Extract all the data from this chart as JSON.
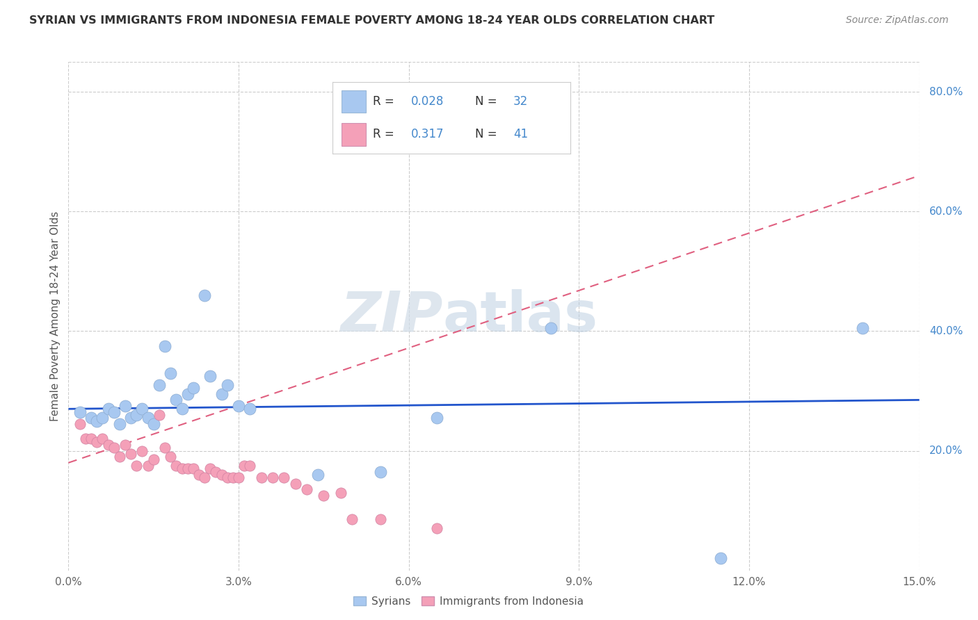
{
  "title": "SYRIAN VS IMMIGRANTS FROM INDONESIA FEMALE POVERTY AMONG 18-24 YEAR OLDS CORRELATION CHART",
  "source": "Source: ZipAtlas.com",
  "ylabel": "Female Poverty Among 18-24 Year Olds",
  "xlim": [
    0.0,
    0.15
  ],
  "ylim": [
    0.0,
    0.85
  ],
  "xticks": [
    0.0,
    0.03,
    0.06,
    0.09,
    0.12,
    0.15
  ],
  "xticklabels": [
    "0.0%",
    "3.0%",
    "6.0%",
    "9.0%",
    "12.0%",
    "15.0%"
  ],
  "yticks_right": [
    0.2,
    0.4,
    0.6,
    0.8
  ],
  "ytick_right_labels": [
    "20.0%",
    "40.0%",
    "60.0%",
    "80.0%"
  ],
  "syrians_color": "#a8c8f0",
  "indonesia_color": "#f4a0b8",
  "trendline_syrians_color": "#2255cc",
  "trendline_indonesia_color": "#e06080",
  "legend_R1": "0.028",
  "legend_N1": "32",
  "legend_R2": "0.317",
  "legend_N2": "41",
  "watermark_zip": "ZIP",
  "watermark_atlas": "atlas",
  "syrians_x": [
    0.002,
    0.004,
    0.005,
    0.006,
    0.007,
    0.008,
    0.009,
    0.01,
    0.011,
    0.012,
    0.013,
    0.014,
    0.015,
    0.016,
    0.017,
    0.018,
    0.019,
    0.02,
    0.021,
    0.022,
    0.024,
    0.025,
    0.027,
    0.028,
    0.03,
    0.032,
    0.044,
    0.055,
    0.065,
    0.085,
    0.115,
    0.14
  ],
  "syrians_y": [
    0.265,
    0.255,
    0.25,
    0.255,
    0.27,
    0.265,
    0.245,
    0.275,
    0.255,
    0.26,
    0.27,
    0.255,
    0.245,
    0.31,
    0.375,
    0.33,
    0.285,
    0.27,
    0.295,
    0.305,
    0.46,
    0.325,
    0.295,
    0.31,
    0.275,
    0.27,
    0.16,
    0.165,
    0.255,
    0.405,
    0.02,
    0.405
  ],
  "indonesia_x": [
    0.002,
    0.003,
    0.004,
    0.005,
    0.006,
    0.007,
    0.008,
    0.009,
    0.01,
    0.011,
    0.012,
    0.013,
    0.014,
    0.015,
    0.016,
    0.017,
    0.018,
    0.019,
    0.02,
    0.021,
    0.022,
    0.023,
    0.024,
    0.025,
    0.026,
    0.027,
    0.028,
    0.029,
    0.03,
    0.031,
    0.032,
    0.034,
    0.036,
    0.038,
    0.04,
    0.042,
    0.045,
    0.048,
    0.05,
    0.055,
    0.065
  ],
  "indonesia_y": [
    0.245,
    0.22,
    0.22,
    0.215,
    0.22,
    0.21,
    0.205,
    0.19,
    0.21,
    0.195,
    0.175,
    0.2,
    0.175,
    0.185,
    0.26,
    0.205,
    0.19,
    0.175,
    0.17,
    0.17,
    0.17,
    0.16,
    0.155,
    0.17,
    0.165,
    0.16,
    0.155,
    0.155,
    0.155,
    0.175,
    0.175,
    0.155,
    0.155,
    0.155,
    0.145,
    0.135,
    0.125,
    0.13,
    0.085,
    0.085,
    0.07
  ],
  "trendline_s_x0": 0.0,
  "trendline_s_x1": 0.15,
  "trendline_s_y0": 0.27,
  "trendline_s_y1": 0.285,
  "trendline_i_x0": 0.0,
  "trendline_i_x1": 0.15,
  "trendline_i_y0": 0.18,
  "trendline_i_y1": 0.66
}
